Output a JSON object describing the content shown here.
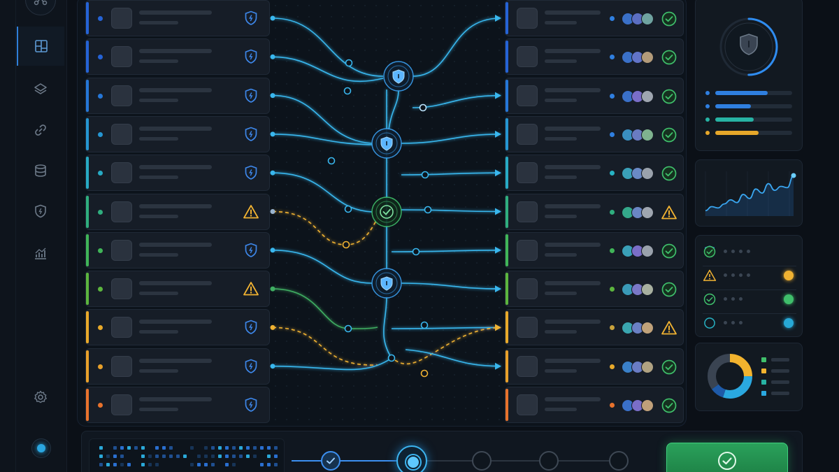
{
  "sidebar": {
    "items": [
      {
        "id": "dashboard",
        "icon": "dashboard-icon",
        "active": true
      },
      {
        "id": "layers",
        "icon": "layers-icon",
        "active": false
      },
      {
        "id": "links",
        "icon": "link-icon",
        "active": false
      },
      {
        "id": "database",
        "icon": "database-icon",
        "active": false
      },
      {
        "id": "security",
        "icon": "shield-icon",
        "active": false
      },
      {
        "id": "analytics",
        "icon": "bar-chart-icon",
        "active": false
      }
    ],
    "top_icon": "network-icon",
    "settings_icon": "gear-icon",
    "status": "online"
  },
  "colors": {
    "blue": "#2f7fe0",
    "teal": "#27b3c4",
    "green": "#39b86a",
    "yellow": "#e6a72a",
    "orange": "#e8722c",
    "link": "#39b7ee",
    "success": "#3fbf6b",
    "warning": "#f0b232"
  },
  "sources": [
    {
      "accent": "#2563d6",
      "status": "shield"
    },
    {
      "accent": "#2563d6",
      "status": "shield"
    },
    {
      "accent": "#2577d8",
      "status": "shield"
    },
    {
      "accent": "#2596d2",
      "status": "shield"
    },
    {
      "accent": "#27aac4",
      "status": "shield"
    },
    {
      "accent": "#2fae7e",
      "status": "warning"
    },
    {
      "accent": "#40b558",
      "status": "shield"
    },
    {
      "accent": "#5cb53e",
      "status": "warning"
    },
    {
      "accent": "#e8a92a",
      "status": "shield"
    },
    {
      "accent": "#e8a02a",
      "status": "shield"
    },
    {
      "accent": "#e8722c",
      "status": "shield"
    }
  ],
  "destinations": [
    {
      "accent": "#2563d6",
      "dot": "#2f7fe0",
      "status": "check"
    },
    {
      "accent": "#2563d6",
      "dot": "#2f7fe0",
      "status": "check"
    },
    {
      "accent": "#2577d8",
      "dot": "#2f7fe0",
      "status": "check"
    },
    {
      "accent": "#2596d2",
      "dot": "#2f7fe0",
      "status": "check"
    },
    {
      "accent": "#27aac4",
      "dot": "#27b3c4",
      "status": "check"
    },
    {
      "accent": "#2fae7e",
      "dot": "#2fae7e",
      "status": "warning"
    },
    {
      "accent": "#40b558",
      "dot": "#40b558",
      "status": "check"
    },
    {
      "accent": "#5cb53e",
      "dot": "#5cb53e",
      "status": "check"
    },
    {
      "accent": "#e8a92a",
      "dot": "#c9a23c",
      "status": "warning"
    },
    {
      "accent": "#e8a02a",
      "dot": "#e8a92a",
      "status": "check"
    },
    {
      "accent": "#e8722c",
      "dot": "#e8722c",
      "status": "check"
    }
  ],
  "hubs": [
    {
      "type": "shield"
    },
    {
      "type": "shield"
    },
    {
      "type": "check"
    },
    {
      "type": "shield"
    }
  ],
  "security_panel": {
    "icon": "shield-icon",
    "gauge_progress": 0.5,
    "bars": [
      {
        "color": "#2f7fe0",
        "fill": 0.68
      },
      {
        "color": "#2f7fe0",
        "fill": 0.46
      },
      {
        "color": "#27b3a4",
        "fill": 0.5
      },
      {
        "color": "#e6a72a",
        "fill": 0.56
      }
    ]
  },
  "trend_chart": {
    "values": [
      4,
      7,
      6,
      9,
      12,
      10,
      16,
      13,
      20,
      17,
      24,
      19,
      22,
      21,
      30
    ]
  },
  "status_list": [
    {
      "icon": "shield-icon",
      "icon_color": "#2f7fe0",
      "end": "check",
      "end_color": "#3fbf6b"
    },
    {
      "icon": "warning-icon",
      "icon_color": "#f0b232",
      "end": "dot",
      "end_color": "#f0b232"
    },
    {
      "icon": "check-circle-icon",
      "icon_color": "#3fbf6b",
      "end": "dot",
      "end_color": "#3fbf6b"
    },
    {
      "icon": "circle-icon",
      "icon_color": "#27b3c4",
      "end": "dot",
      "end_color": "#27a8d6"
    }
  ],
  "donut": {
    "segments": [
      {
        "color": "#f2b32e",
        "value": 25
      },
      {
        "color": "#2aa8e0",
        "value": 30
      },
      {
        "color": "#1e5aa8",
        "value": 10
      },
      {
        "color": "#3a4452",
        "value": 35
      }
    ],
    "legend_colors": [
      "#3fbf6b",
      "#f2b32e",
      "#27b3a4",
      "#2aa8e0"
    ]
  },
  "stepper": {
    "steps": [
      {
        "state": "done"
      },
      {
        "state": "current"
      },
      {
        "state": "pending"
      },
      {
        "state": "pending"
      },
      {
        "state": "pending"
      }
    ]
  },
  "confirm": {
    "icon": "check-icon"
  }
}
